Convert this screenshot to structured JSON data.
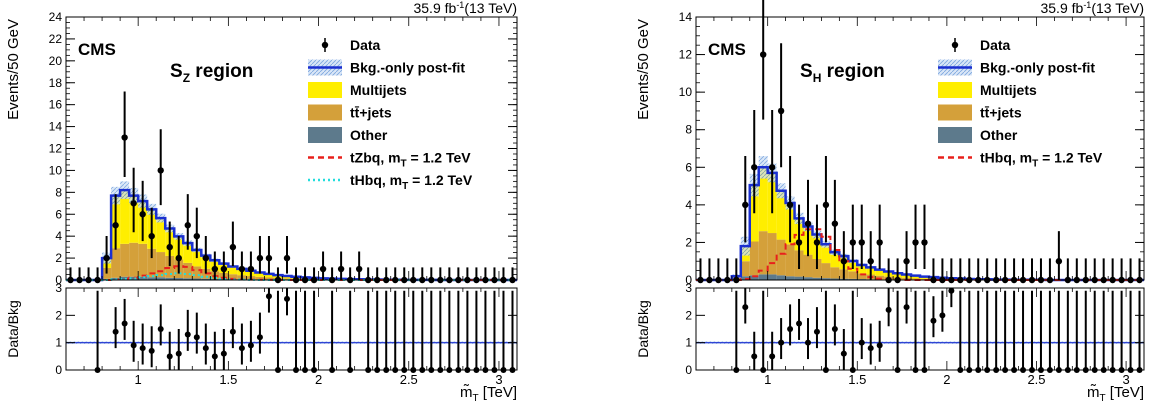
{
  "chart_data": [
    {
      "type": "histogram",
      "lumi_value": "35.9 fb",
      "lumi_exp": "-1",
      "lumi_energy": "(13 TeV)",
      "experiment": "CMS",
      "region_main": "S",
      "region_sub": "Z",
      "region_rest": " region",
      "ylabel": "Events/50 GeV",
      "ratio_ylabel": "Data/Bkg",
      "xlabel_main": "m̃",
      "xlabel_sub": "T",
      "xlabel_unit": " [TeV]",
      "xlim": [
        0.6,
        3.1
      ],
      "ylim": [
        0,
        24
      ],
      "ratio_ylim": [
        0,
        3
      ],
      "yticks": [
        0,
        2,
        4,
        6,
        8,
        10,
        12,
        14,
        16,
        18,
        20,
        22,
        24
      ],
      "ratio_yticks": [
        0,
        1,
        2,
        3
      ],
      "xticks": [
        1,
        1.5,
        2,
        2.5,
        3
      ],
      "legend": [
        {
          "label": "Data",
          "kind": "data"
        },
        {
          "label": "Bkg.-only post-fit",
          "kind": "bkg"
        },
        {
          "label": "Multijets",
          "kind": "fill",
          "color": "#ffee00"
        },
        {
          "label": "tt̄+jets",
          "kind": "fill",
          "color": "#d4a03a"
        },
        {
          "label": "Other",
          "kind": "fill",
          "color": "#5d7a8c"
        },
        {
          "label": "tZbq, m",
          "sub": "T",
          "rest": " = 1.2 TeV",
          "kind": "dashed",
          "color": "#e8201c"
        },
        {
          "label": "tHbq, m",
          "sub": "T",
          "rest": " = 1.2 TeV",
          "kind": "dotted",
          "color": "#22dddd"
        }
      ],
      "bin_edges_start": 0.6,
      "bin_width": 0.05,
      "other": [
        0,
        0,
        0,
        0,
        0.1,
        0.2,
        0.3,
        0.3,
        0.3,
        0.25,
        0.25,
        0.2,
        0.18,
        0.16,
        0.14,
        0.12,
        0.1,
        0.09,
        0.08,
        0.07,
        0.06,
        0.05,
        0.04,
        0.03,
        0.03,
        0.02,
        0.02,
        0.02,
        0.01,
        0.01,
        0.01,
        0.01,
        0.01,
        0.01,
        0.01,
        0,
        0,
        0,
        0,
        0,
        0,
        0,
        0,
        0,
        0,
        0,
        0,
        0,
        0,
        0
      ],
      "ttbar": [
        0,
        0,
        0,
        0,
        1.0,
        2.7,
        3.0,
        3.1,
        3.0,
        2.6,
        2.3,
        2.0,
        1.7,
        1.4,
        1.1,
        0.9,
        0.7,
        0.55,
        0.45,
        0.37,
        0.3,
        0.24,
        0.19,
        0.15,
        0.12,
        0.1,
        0.08,
        0.06,
        0.05,
        0.04,
        0.03,
        0.02,
        0.02,
        0.01,
        0.01,
        0,
        0,
        0,
        0,
        0,
        0,
        0,
        0,
        0,
        0,
        0,
        0,
        0,
        0,
        0
      ],
      "multijet": [
        0,
        0,
        0,
        0,
        0.9,
        4.8,
        4.9,
        4.3,
        3.9,
        3.6,
        3.1,
        2.5,
        2.1,
        1.8,
        1.5,
        1.2,
        1.0,
        0.85,
        0.7,
        0.58,
        0.48,
        0.4,
        0.33,
        0.27,
        0.22,
        0.18,
        0.14,
        0.11,
        0.09,
        0.07,
        0.06,
        0.05,
        0.04,
        0.03,
        0.03,
        0.02,
        0.02,
        0.01,
        0.01,
        0.01,
        0.01,
        0,
        0,
        0,
        0,
        0,
        0,
        0,
        0,
        0
      ],
      "bkg_unc": [
        0,
        0,
        0,
        0,
        0.5,
        0.8,
        0.8,
        0.7,
        0.6,
        0.5,
        0.4,
        0.35,
        0.3,
        0.25,
        0.2,
        0.18,
        0.15,
        0.13,
        0.1,
        0.08,
        0.07,
        0.06,
        0.05,
        0.04,
        0.03,
        0.03,
        0.02,
        0.02,
        0.02,
        0.01,
        0.01,
        0.01,
        0.01,
        0.01,
        0.01,
        0,
        0,
        0,
        0,
        0,
        0,
        0,
        0,
        0,
        0,
        0,
        0,
        0,
        0,
        0
      ],
      "signal1": [
        0,
        0,
        0,
        0,
        0,
        0.05,
        0.1,
        0.2,
        0.4,
        0.6,
        0.8,
        1.1,
        1.25,
        1.2,
        0.9,
        0.6,
        0.35,
        0.2,
        0.1,
        0.05,
        0.03,
        0.02,
        0.01,
        0,
        0,
        0,
        0,
        0,
        0,
        0,
        0,
        0,
        0,
        0,
        0,
        0,
        0,
        0,
        0,
        0,
        0,
        0,
        0,
        0,
        0,
        0,
        0,
        0,
        0,
        0
      ],
      "signal2": [
        0,
        0,
        0,
        0,
        0,
        0.05,
        0.1,
        0.15,
        0.25,
        0.35,
        0.45,
        0.55,
        0.6,
        0.55,
        0.45,
        0.3,
        0.2,
        0.1,
        0.05,
        0.03,
        0.01,
        0,
        0,
        0,
        0,
        0,
        0,
        0,
        0,
        0,
        0,
        0,
        0,
        0,
        0,
        0,
        0,
        0,
        0,
        0,
        0,
        0,
        0,
        0,
        0,
        0,
        0,
        0,
        0,
        0
      ],
      "data_x": [
        0.625,
        0.675,
        0.725,
        0.775,
        0.825,
        0.875,
        0.925,
        0.975,
        1.025,
        1.075,
        1.125,
        1.175,
        1.225,
        1.275,
        1.325,
        1.375,
        1.425,
        1.475,
        1.525,
        1.575,
        1.625,
        1.675,
        1.725,
        1.775,
        1.825,
        1.875,
        1.925,
        1.975,
        2.025,
        2.075,
        2.125,
        2.175,
        2.225,
        2.275,
        2.325,
        2.375,
        2.425,
        2.475,
        2.525,
        2.575,
        2.625,
        2.675,
        2.725,
        2.775,
        2.825,
        2.875,
        2.925,
        2.975,
        3.025,
        3.075
      ],
      "data_y": [
        0,
        0,
        0,
        0,
        2,
        5,
        13,
        7,
        6,
        4,
        10,
        3,
        2,
        5,
        4,
        2,
        1,
        1,
        3,
        1,
        1,
        2,
        2,
        0,
        2,
        0,
        0,
        0,
        1,
        0,
        1,
        0,
        1,
        0,
        0,
        0,
        0,
        0,
        0,
        0,
        0,
        0,
        0,
        0,
        0,
        0,
        0,
        0,
        0,
        0
      ],
      "ratio_y": [
        null,
        null,
        null,
        0,
        null,
        1.4,
        1.7,
        0.9,
        0.8,
        0.7,
        1.5,
        0.5,
        0.6,
        1.3,
        1.2,
        0.8,
        0.5,
        0.6,
        1.4,
        0.8,
        0.9,
        1.2,
        2.7,
        0,
        2.6,
        0,
        0,
        0,
        null,
        0,
        null,
        0,
        null,
        0,
        0,
        0,
        0,
        0,
        0,
        0,
        0,
        0,
        0,
        0,
        0,
        0,
        0,
        0,
        0,
        0
      ]
    },
    {
      "type": "histogram",
      "lumi_value": "35.9 fb",
      "lumi_exp": "-1",
      "lumi_energy": "(13 TeV)",
      "experiment": "CMS",
      "region_main": "S",
      "region_sub": "H",
      "region_rest": " region",
      "ylabel": "Events/50 GeV",
      "ratio_ylabel": "Data/Bkg",
      "xlabel_main": "m̃",
      "xlabel_sub": "T",
      "xlabel_unit": " [TeV]",
      "xlim": [
        0.6,
        3.1
      ],
      "ylim": [
        0,
        14
      ],
      "ratio_ylim": [
        0,
        3
      ],
      "yticks": [
        0,
        2,
        4,
        6,
        8,
        10,
        12,
        14
      ],
      "ratio_yticks": [
        0,
        1,
        2,
        3
      ],
      "xticks": [
        1,
        1.5,
        2,
        2.5,
        3
      ],
      "legend": [
        {
          "label": "Data",
          "kind": "data"
        },
        {
          "label": "Bkg.-only post-fit",
          "kind": "bkg"
        },
        {
          "label": "Multijets",
          "kind": "fill",
          "color": "#ffee00"
        },
        {
          "label": "tt̄+jets",
          "kind": "fill",
          "color": "#d4a03a"
        },
        {
          "label": "Other",
          "kind": "fill",
          "color": "#5d7a8c"
        },
        {
          "label": "tHbq, m",
          "sub": "T",
          "rest": " = 1.2 TeV",
          "kind": "dashed",
          "color": "#e8201c"
        }
      ],
      "bin_edges_start": 0.6,
      "bin_width": 0.05,
      "other": [
        0,
        0,
        0,
        0,
        0.05,
        0.2,
        0.25,
        0.3,
        0.3,
        0.25,
        0.2,
        0.18,
        0.15,
        0.12,
        0.1,
        0.08,
        0.07,
        0.06,
        0.05,
        0.04,
        0.03,
        0.03,
        0.02,
        0.02,
        0.01,
        0.01,
        0.01,
        0.01,
        0.01,
        0.01,
        0,
        0,
        0,
        0,
        0,
        0,
        0,
        0,
        0,
        0,
        0,
        0,
        0,
        0,
        0,
        0,
        0,
        0,
        0,
        0
      ],
      "ttbar": [
        0,
        0,
        0,
        0,
        0.1,
        0.8,
        1.8,
        2.3,
        2.2,
        1.9,
        1.7,
        1.4,
        1.2,
        1.0,
        0.8,
        0.6,
        0.5,
        0.4,
        0.3,
        0.25,
        0.2,
        0.15,
        0.12,
        0.09,
        0.07,
        0.05,
        0.04,
        0.03,
        0.02,
        0.02,
        0.01,
        0.01,
        0.01,
        0,
        0,
        0,
        0,
        0,
        0,
        0,
        0,
        0,
        0,
        0,
        0,
        0,
        0,
        0,
        0,
        0
      ],
      "multijet": [
        0,
        0,
        0,
        0,
        0.05,
        0.8,
        3.0,
        3.4,
        3.2,
        2.6,
        2.2,
        1.7,
        1.5,
        1.3,
        1.0,
        0.8,
        0.7,
        0.55,
        0.45,
        0.38,
        0.32,
        0.27,
        0.22,
        0.18,
        0.15,
        0.12,
        0.1,
        0.08,
        0.06,
        0.05,
        0.04,
        0.03,
        0.03,
        0.02,
        0.02,
        0.01,
        0.01,
        0.01,
        0.01,
        0,
        0,
        0,
        0,
        0,
        0,
        0,
        0,
        0,
        0,
        0
      ],
      "bkg_unc": [
        0,
        0,
        0,
        0,
        0.1,
        0.5,
        0.6,
        0.6,
        0.5,
        0.4,
        0.35,
        0.3,
        0.25,
        0.2,
        0.18,
        0.15,
        0.12,
        0.1,
        0.08,
        0.07,
        0.06,
        0.05,
        0.04,
        0.03,
        0.03,
        0.02,
        0.02,
        0.02,
        0.01,
        0.01,
        0.01,
        0.01,
        0,
        0,
        0,
        0,
        0,
        0,
        0,
        0,
        0,
        0,
        0,
        0,
        0,
        0,
        0,
        0,
        0,
        0
      ],
      "signal1": [
        0,
        0,
        0,
        0,
        0,
        0.05,
        0.2,
        0.5,
        0.9,
        1.4,
        1.9,
        2.4,
        2.7,
        2.7,
        2.3,
        1.6,
        1.0,
        0.6,
        0.3,
        0.15,
        0.07,
        0.03,
        0.01,
        0,
        0,
        0,
        0,
        0,
        0,
        0,
        0,
        0,
        0,
        0,
        0,
        0,
        0,
        0,
        0,
        0,
        0,
        0,
        0,
        0,
        0,
        0,
        0,
        0,
        0,
        0
      ],
      "data_x": [
        0.625,
        0.675,
        0.725,
        0.775,
        0.825,
        0.875,
        0.925,
        0.975,
        1.025,
        1.075,
        1.125,
        1.175,
        1.225,
        1.275,
        1.325,
        1.375,
        1.425,
        1.475,
        1.525,
        1.575,
        1.625,
        1.675,
        1.725,
        1.775,
        1.825,
        1.875,
        1.925,
        1.975,
        2.025,
        2.075,
        2.125,
        2.175,
        2.225,
        2.275,
        2.325,
        2.375,
        2.425,
        2.475,
        2.525,
        2.575,
        2.625,
        2.675,
        2.725,
        2.775,
        2.825,
        2.875,
        2.925,
        2.975,
        3.025,
        3.075
      ],
      "data_y": [
        0,
        0,
        0,
        0,
        0,
        4,
        6,
        12,
        6,
        9,
        4,
        2,
        3,
        2,
        4,
        3,
        1,
        2,
        2,
        1,
        2,
        0,
        0,
        1,
        2,
        2,
        0,
        0,
        0,
        0,
        0,
        0,
        0,
        0,
        0,
        0,
        0,
        0,
        0,
        0,
        1,
        0,
        0,
        0,
        0,
        0,
        0,
        0,
        0,
        0
      ],
      "ratio_y": [
        null,
        null,
        null,
        null,
        0,
        2.3,
        0.5,
        0,
        0.5,
        1.0,
        1.5,
        1.7,
        1.0,
        1.4,
        0,
        1.5,
        0.6,
        0,
        1.0,
        0.8,
        0.9,
        2.2,
        0,
        2.3,
        0,
        0,
        1.8,
        2.0,
        2.9,
        0,
        0,
        0,
        0,
        0,
        0,
        0,
        0,
        0,
        0,
        0,
        0,
        0,
        0,
        0,
        0,
        0,
        0,
        0,
        0,
        0
      ]
    }
  ]
}
